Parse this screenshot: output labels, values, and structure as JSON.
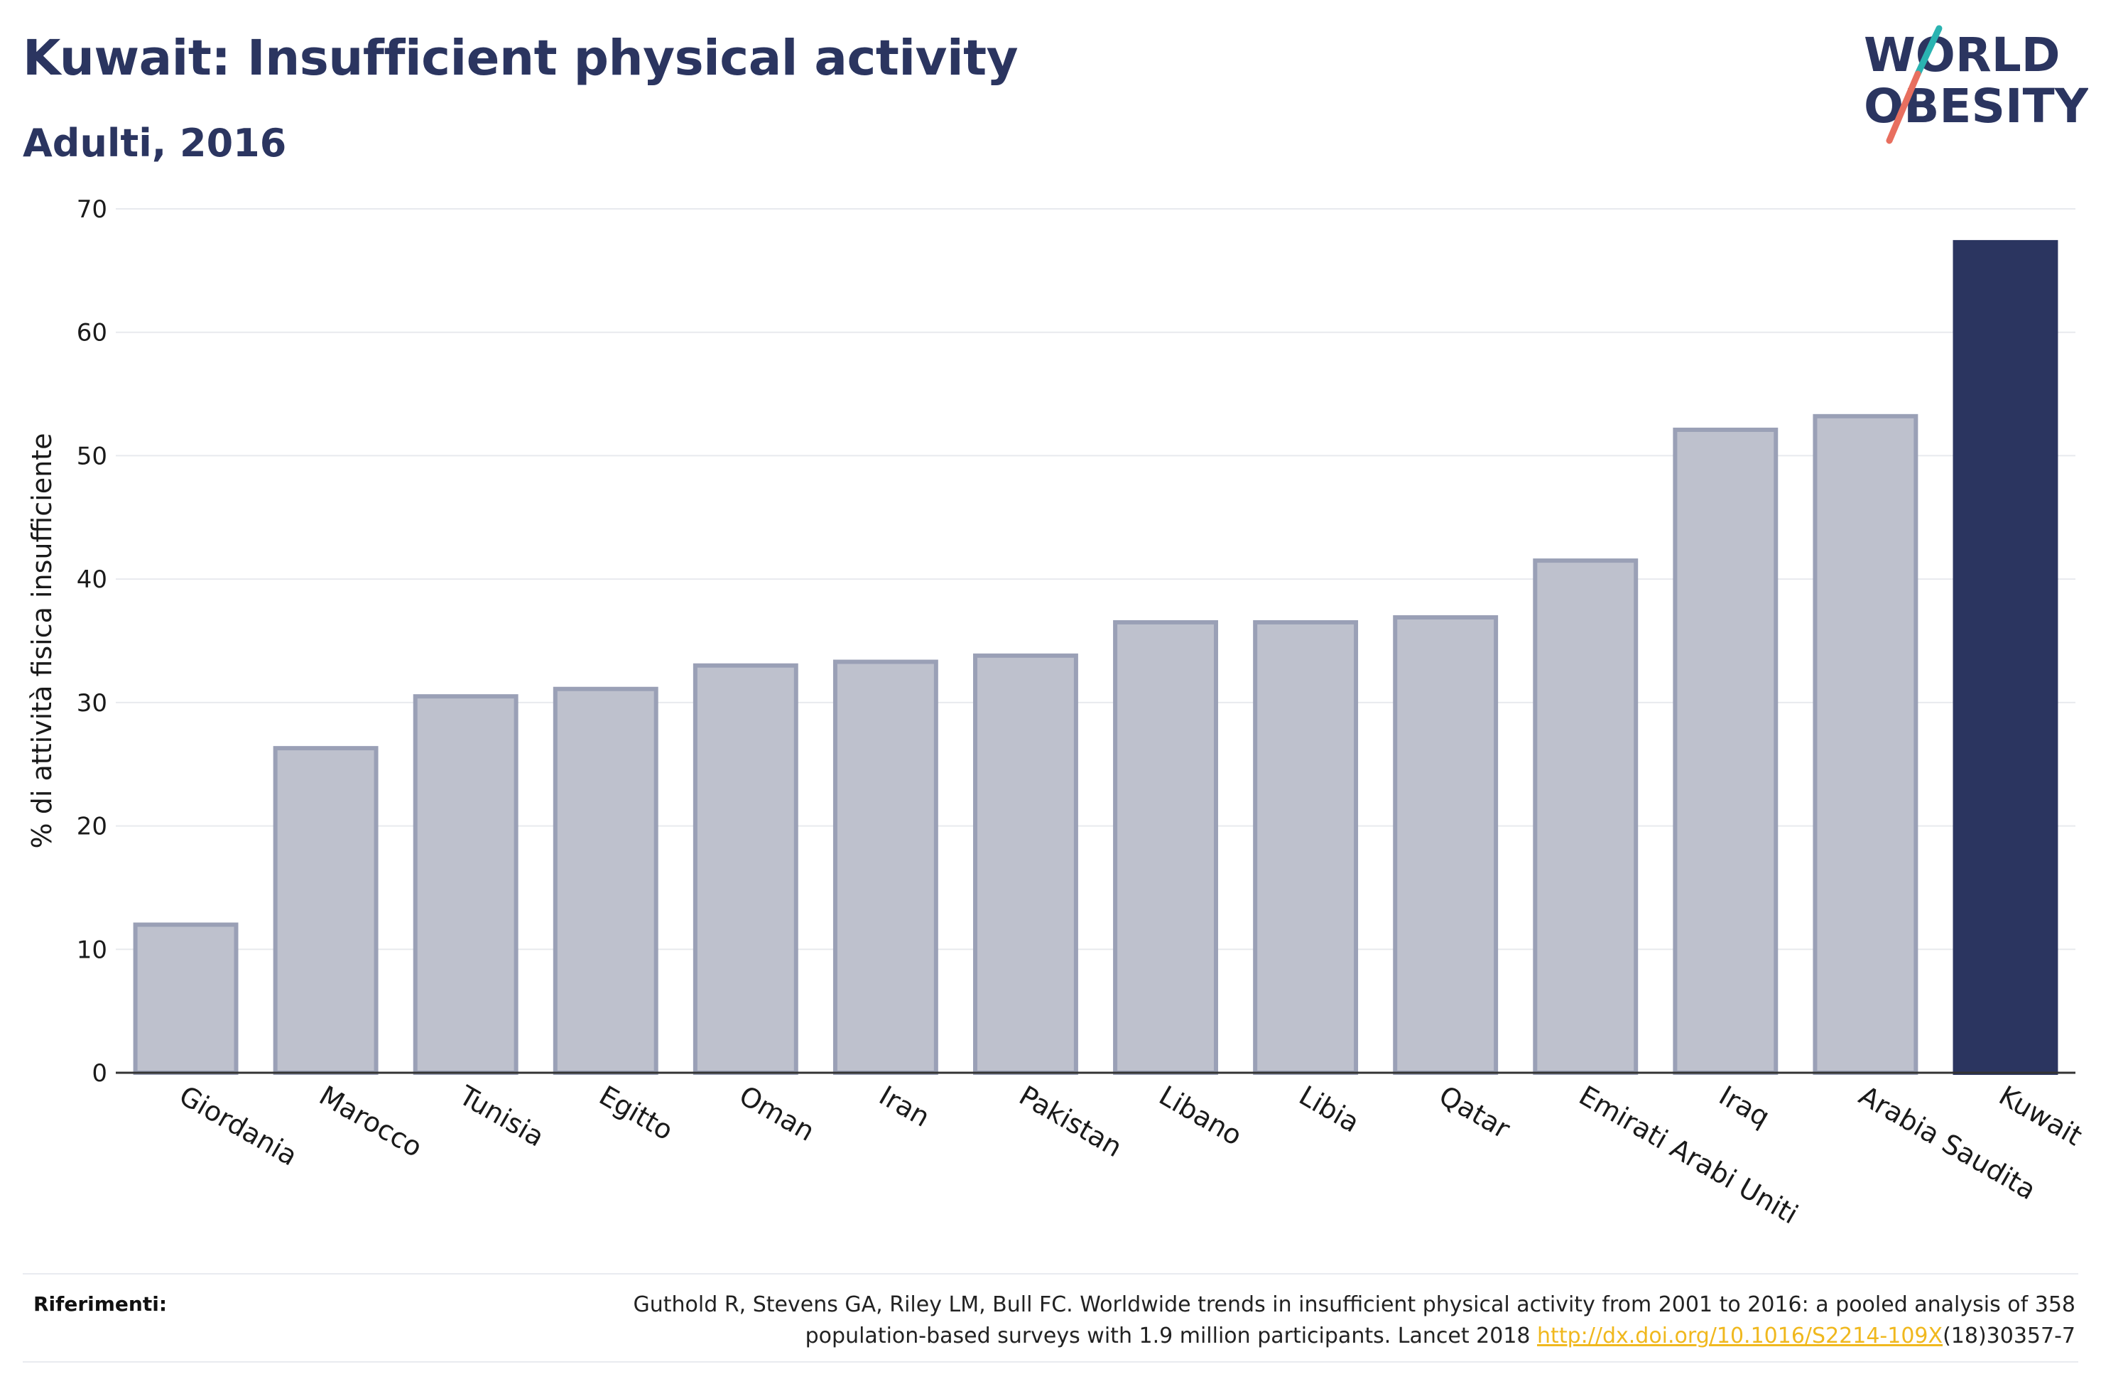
{
  "header": {
    "title": "Kuwait: Insufficient physical activity",
    "subtitle": "Adulti, 2016"
  },
  "logo": {
    "line1": "WORLD",
    "line2": "OBESITY"
  },
  "colors": {
    "highlight": "#2b3560",
    "bar_fill": "#bec1cd",
    "bar_stroke": "#9aa0b6",
    "axis_text": "#1a1a1a",
    "grid": "#e8eaee",
    "link": "#f0b81e",
    "logo_teal": "#2ab3b1",
    "logo_coral": "#e86f5f"
  },
  "chart_data": {
    "type": "bar",
    "title": "Kuwait: Insufficient physical activity",
    "subtitle": "Adulti, 2016",
    "xlabel": "",
    "ylabel": "% di attività fisica insufficiente",
    "ylim": [
      0,
      70
    ],
    "yticks": [
      0,
      10,
      20,
      30,
      40,
      50,
      60,
      70
    ],
    "grid": true,
    "highlight_category": "Kuwait",
    "categories": [
      "Giordania",
      "Marocco",
      "Tunisia",
      "Egitto",
      "Oman",
      "Iran",
      "Pakistan",
      "Libano",
      "Libia",
      "Qatar",
      "Emirati Arabi Uniti",
      "Iraq",
      "Arabia Saudita",
      "Kuwait"
    ],
    "values": [
      12.0,
      26.3,
      30.5,
      31.1,
      33.0,
      33.3,
      33.8,
      36.5,
      36.5,
      36.9,
      41.5,
      52.1,
      53.2,
      67.3
    ]
  },
  "references": {
    "label": "Riferimenti:",
    "text_line1": "Guthold R, Stevens GA, Riley LM, Bull FC. Worldwide trends in insufficient physical activity from 2001 to 2016: a pooled analysis of 358",
    "text_line2_pre": "population-based surveys with 1.9 million participants. Lancet 2018 ",
    "link": "http://dx.doi.org/10.1016/S2214-109X",
    "text_line2_post": "(18)30357-7"
  }
}
